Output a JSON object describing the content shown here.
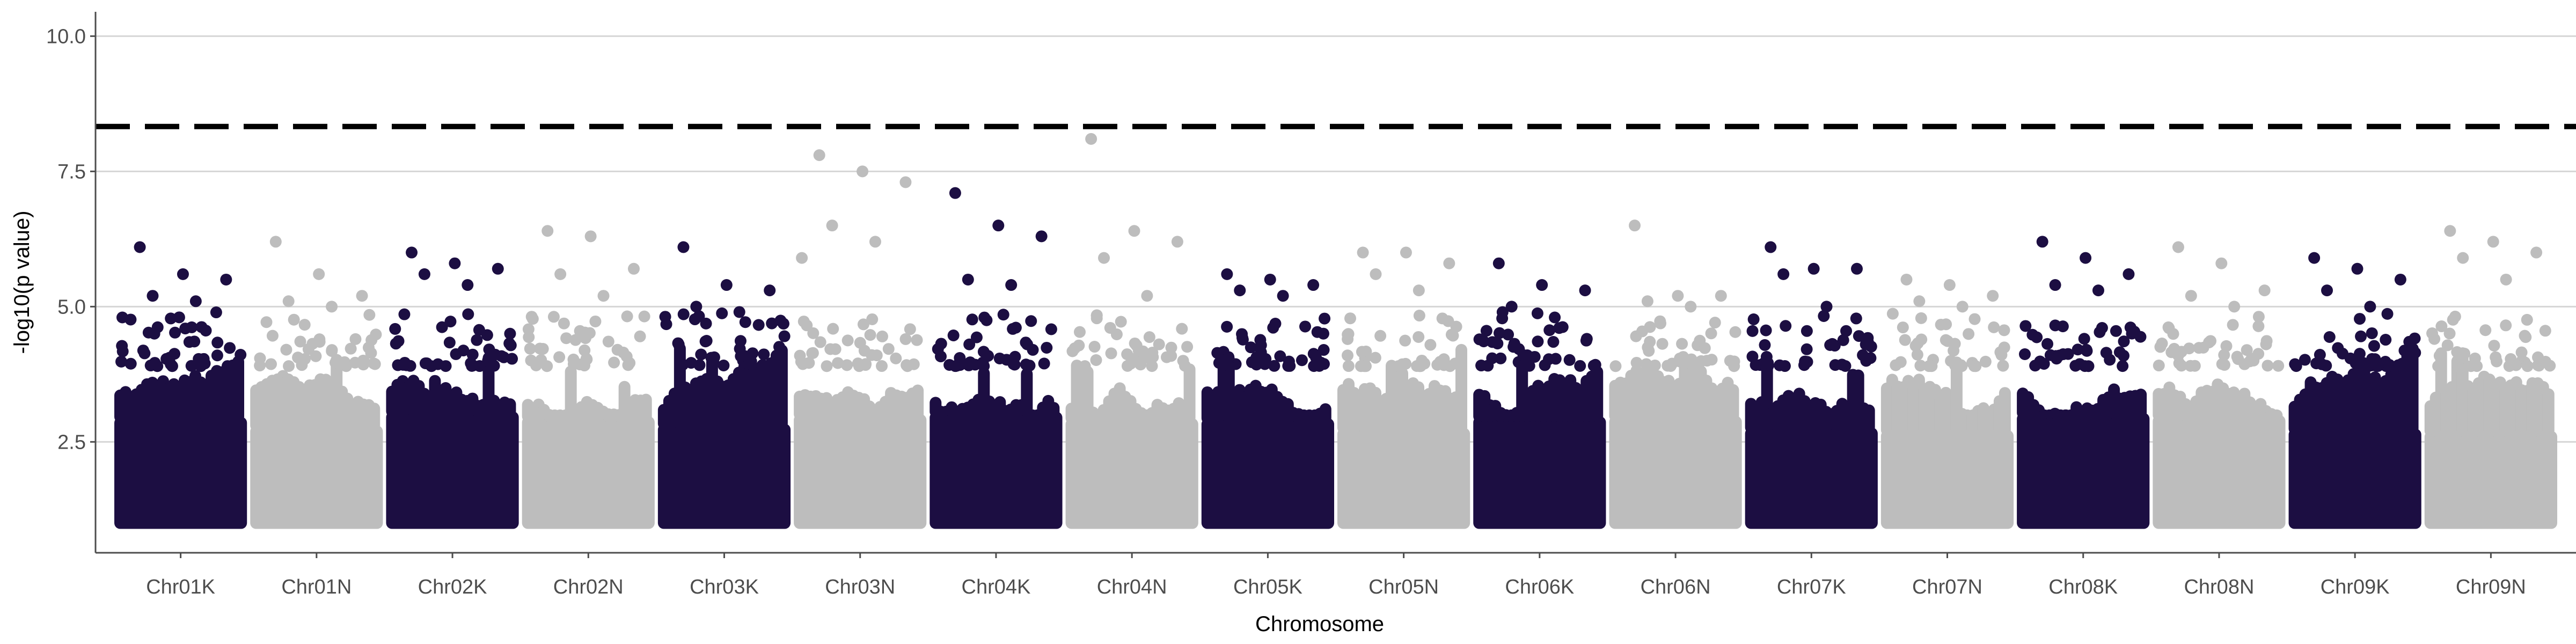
{
  "chart_data": {
    "type": "scatter",
    "title": "",
    "xlabel": "Chromosome",
    "ylabel": "-log10(p value)",
    "categories": [
      "Chr01K",
      "Chr01N",
      "Chr02K",
      "Chr02N",
      "Chr03K",
      "Chr03N",
      "Chr04K",
      "Chr04N",
      "Chr05K",
      "Chr05N",
      "Chr06K",
      "Chr06N",
      "Chr07K",
      "Chr07N",
      "Chr08K",
      "Chr08N",
      "Chr09K",
      "Chr09N"
    ],
    "ylim": [
      0.45,
      10.45
    ],
    "yticks": [
      2.5,
      5.0,
      7.5,
      10.0
    ],
    "ytick_labels": [
      "2.5",
      "5.0",
      "7.5",
      "10.0"
    ],
    "threshold": 8.33,
    "grid": "horizontal major",
    "colors": {
      "dark": "#1c0e42",
      "light": "#bdbdbd",
      "threshold": "#000000",
      "grid": "#d6d6d6",
      "axis": "#4d4d4d"
    },
    "top_points": [
      {
        "chromosome": "Chr01K",
        "values": [
          6.1,
          5.6,
          5.5,
          5.2,
          5.1,
          4.8
        ]
      },
      {
        "chromosome": "Chr01N",
        "values": [
          6.2,
          5.6,
          5.2,
          5.1,
          5.0
        ]
      },
      {
        "chromosome": "Chr02K",
        "values": [
          6.0,
          5.8,
          5.7,
          5.6,
          5.4
        ]
      },
      {
        "chromosome": "Chr02N",
        "values": [
          6.4,
          6.3,
          5.7,
          5.6,
          5.2
        ]
      },
      {
        "chromosome": "Chr03K",
        "values": [
          6.1,
          5.4,
          5.3,
          5.0,
          4.9
        ]
      },
      {
        "chromosome": "Chr03N",
        "values": [
          7.8,
          7.5,
          7.3,
          6.5,
          6.2,
          5.9
        ]
      },
      {
        "chromosome": "Chr04K",
        "values": [
          7.1,
          6.5,
          6.3,
          5.5,
          5.4
        ]
      },
      {
        "chromosome": "Chr04N",
        "values": [
          8.1,
          6.4,
          6.2,
          5.9,
          5.2
        ]
      },
      {
        "chromosome": "Chr05K",
        "values": [
          5.6,
          5.5,
          5.4,
          5.3,
          5.2
        ]
      },
      {
        "chromosome": "Chr05N",
        "values": [
          6.0,
          6.0,
          5.8,
          5.6,
          5.3
        ]
      },
      {
        "chromosome": "Chr06K",
        "values": [
          5.8,
          5.4,
          5.3,
          5.0,
          4.8
        ]
      },
      {
        "chromosome": "Chr06N",
        "values": [
          6.5,
          5.2,
          5.2,
          5.1,
          5.0
        ]
      },
      {
        "chromosome": "Chr07K",
        "values": [
          6.1,
          5.7,
          5.7,
          5.6,
          5.0
        ]
      },
      {
        "chromosome": "Chr07N",
        "values": [
          5.5,
          5.4,
          5.2,
          5.1,
          5.0
        ]
      },
      {
        "chromosome": "Chr08K",
        "values": [
          6.2,
          5.9,
          5.6,
          5.4,
          5.3
        ]
      },
      {
        "chromosome": "Chr08N",
        "values": [
          6.1,
          5.8,
          5.3,
          5.2,
          5.0
        ]
      },
      {
        "chromosome": "Chr09K",
        "values": [
          5.9,
          5.7,
          5.5,
          5.3,
          5.0
        ]
      },
      {
        "chromosome": "Chr09N",
        "values": [
          6.4,
          6.2,
          6.0,
          5.9,
          5.5
        ]
      }
    ]
  }
}
